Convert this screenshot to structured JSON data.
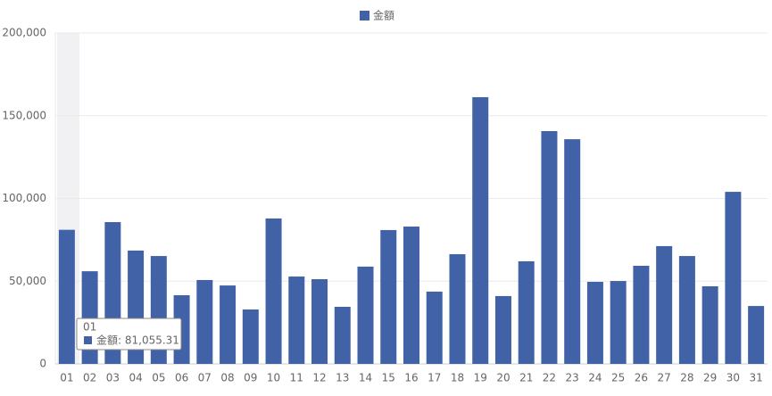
{
  "chart_data": {
    "type": "bar",
    "categories": [
      "01",
      "02",
      "03",
      "04",
      "05",
      "06",
      "07",
      "08",
      "09",
      "10",
      "11",
      "12",
      "13",
      "14",
      "15",
      "16",
      "17",
      "18",
      "19",
      "20",
      "21",
      "22",
      "23",
      "24",
      "25",
      "26",
      "27",
      "28",
      "29",
      "30",
      "31"
    ],
    "series": [
      {
        "name": "金額",
        "color": "#4262a8",
        "values": [
          81055.31,
          56000,
          85700,
          68500,
          65200,
          41500,
          50700,
          47400,
          32900,
          87900,
          52800,
          51200,
          34500,
          58800,
          80900,
          83000,
          43700,
          66300,
          161200,
          41000,
          62000,
          140700,
          135800,
          49600,
          50100,
          59300,
          71200,
          65200,
          46900,
          104000,
          35000
        ]
      }
    ],
    "ylim": [
      0,
      200000
    ],
    "yticks": [
      0,
      {
        "value": 50000,
        "label": "50,000"
      },
      {
        "value": 100000,
        "label": "100,000"
      },
      {
        "value": 150000,
        "label": "150,000"
      },
      {
        "value": 200000,
        "label": "200,000"
      }
    ],
    "grid": true,
    "legend": "top",
    "tooltip": {
      "title": "01",
      "text": "金額: 81,055.31"
    }
  }
}
